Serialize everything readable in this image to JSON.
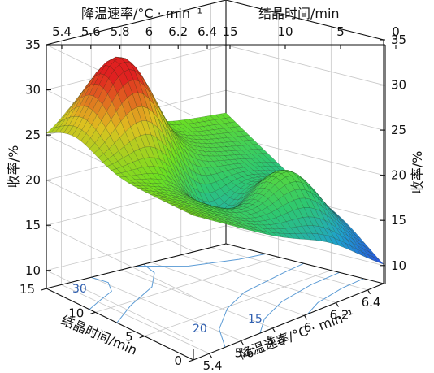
{
  "chart_data": {
    "type": "surface3d",
    "title": "",
    "x_axis": {
      "label": "降温速率/°C · min⁻¹",
      "range": [
        5.3,
        6.5
      ],
      "ticks": [
        "5.4",
        "5.6",
        "5.8",
        "6",
        "6.2",
        "6.4"
      ],
      "top_ticks": [
        "5.4",
        "5.6",
        "5.8",
        "6",
        "6.2",
        "6.4"
      ]
    },
    "y_axis": {
      "label": "结晶时间/min",
      "range": [
        0,
        15
      ],
      "ticks": [
        "0",
        "5",
        "10",
        "15"
      ],
      "top_ticks": [
        "15",
        "10",
        "5",
        "0"
      ]
    },
    "z_axis": {
      "label": "收率/%",
      "range": [
        8,
        35
      ],
      "ticks": [
        "10",
        "15",
        "20",
        "25",
        "30",
        "35"
      ]
    },
    "surface_points": [
      {
        "x": 5.3,
        "y": 15,
        "z": 24.5
      },
      {
        "x": 5.6,
        "y": 12.5,
        "z": 32
      },
      {
        "x": 6.5,
        "y": 15,
        "z": 22.5
      },
      {
        "x": 5.3,
        "y": 0,
        "z": 22
      },
      {
        "x": 5.95,
        "y": 7.5,
        "z": 23
      },
      {
        "x": 6.2,
        "y": 3.5,
        "z": 26
      },
      {
        "x": 6.5,
        "y": 0,
        "z": 9.5
      }
    ],
    "contour_labels": [
      "30",
      "20",
      "15"
    ],
    "colormap": [
      "#2a4fe0",
      "#1f9fd0",
      "#2ec870",
      "#6ee020",
      "#e0c020",
      "#e02020"
    ],
    "grid": true
  }
}
